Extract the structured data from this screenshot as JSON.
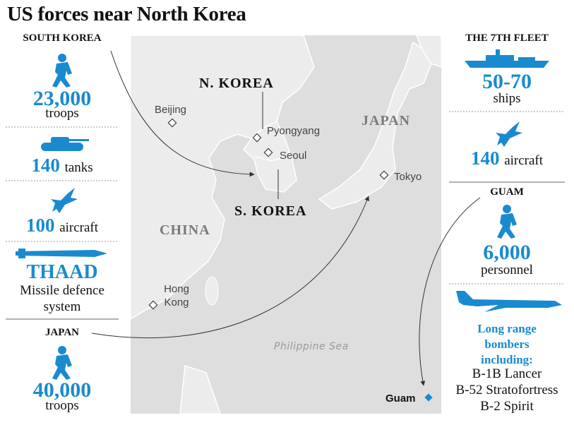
{
  "title": "US forces near North Korea",
  "south_korea": {
    "heading": "SOUTH KOREA",
    "troops_number": "23,000",
    "troops_label": "troops",
    "tanks_number": "140",
    "tanks_label": "tanks",
    "aircraft_number": "100",
    "aircraft_label": "aircraft",
    "thaad_name": "THAAD",
    "thaad_description": "Missile defence system"
  },
  "japan": {
    "heading": "JAPAN",
    "troops_number": "40,000",
    "troops_label": "troops"
  },
  "seventh_fleet": {
    "heading": "THE 7TH FLEET",
    "ships_number": "50-70",
    "ships_label": "ships",
    "aircraft_number": "140",
    "aircraft_label": "aircraft"
  },
  "guam": {
    "heading": "GUAM",
    "personnel_number": "6,000",
    "personnel_label": "personnel",
    "bombers_heading": "Long range bombers including:",
    "bombers": [
      "B-1B Lancer",
      "B-52 Stratofortress",
      "B-2 Spirit"
    ]
  },
  "map": {
    "countries": {
      "north_korea": "N. KOREA",
      "south_korea": "S. KOREA",
      "china": "CHINA",
      "japan": "JAPAN"
    },
    "cities": {
      "beijing": "Beijing",
      "pyongyang": "Pyongyang",
      "seoul": "Seoul",
      "tokyo": "Tokyo",
      "hong_kong": "Hong Kong"
    },
    "sea": "Philippine Sea",
    "guam": "Guam"
  }
}
